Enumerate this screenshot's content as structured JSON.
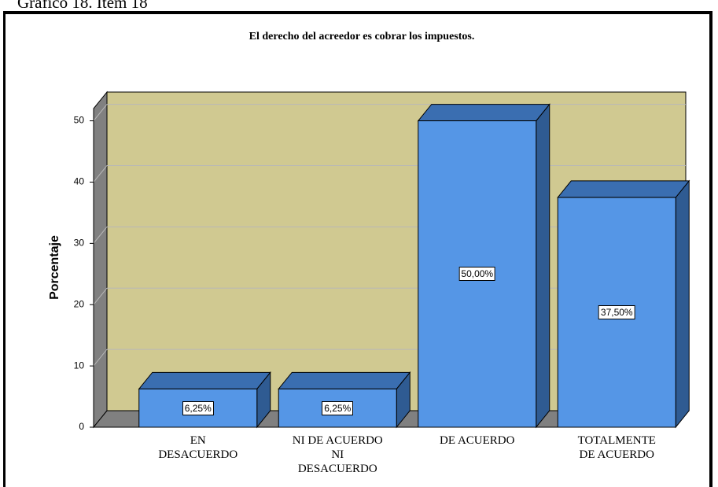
{
  "header": {
    "title": "Gráfico 18. Ítem 18"
  },
  "chart_data": {
    "type": "bar3d",
    "title": "El derecho del acreedor es cobrar los impuestos.",
    "y_label": "Porcentaje",
    "categories": [
      "EN\nDESACUERDO",
      "NI DE ACUERDO\nNI\nDESACUERDO",
      "DE ACUERDO",
      "TOTALMENTE\nDE ACUERDO"
    ],
    "values": [
      6.25,
      6.25,
      50,
      37.5
    ],
    "value_labels": [
      "6,25%",
      "6,25%",
      "50,00%",
      "37,50%"
    ],
    "color": "#5596e6",
    "ylim": [
      0,
      52
    ],
    "yticks": [
      0,
      10,
      20,
      30,
      40,
      50
    ],
    "grid": true
  }
}
